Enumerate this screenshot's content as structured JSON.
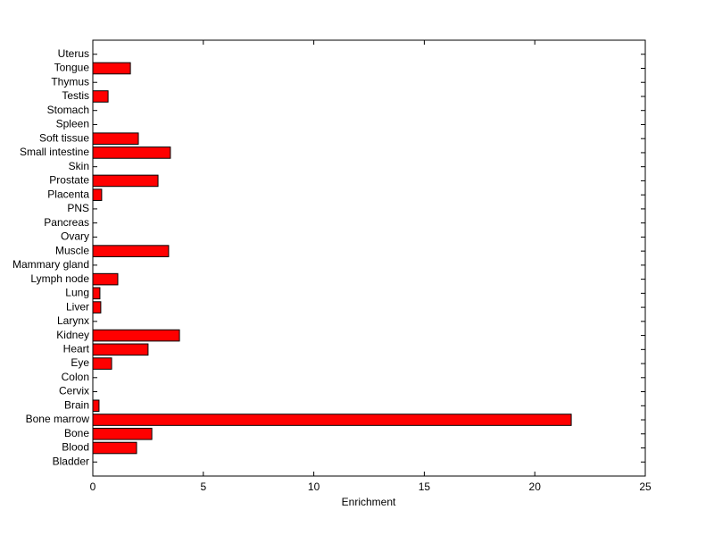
{
  "chart_data": {
    "type": "barh",
    "xlabel": "Enrichment",
    "categories": [
      "Bladder",
      "Blood",
      "Bone",
      "Bone marrow",
      "Brain",
      "Cervix",
      "Colon",
      "Eye",
      "Heart",
      "Kidney",
      "Larynx",
      "Liver",
      "Lung",
      "Lymph node",
      "Mammary gland",
      "Muscle",
      "Ovary",
      "Pancreas",
      "PNS",
      "Placenta",
      "Prostate",
      "Skin",
      "Small intestine",
      "Soft tissue",
      "Spleen",
      "Stomach",
      "Testis",
      "Thymus",
      "Tongue",
      "Uterus"
    ],
    "values": [
      0,
      1.98,
      2.67,
      21.65,
      0.28,
      0,
      0,
      0.85,
      2.5,
      3.92,
      0,
      0.36,
      0.32,
      1.13,
      0,
      3.43,
      0,
      0,
      0,
      0.4,
      2.95,
      0,
      3.51,
      2.06,
      0,
      0,
      0.69,
      0,
      1.7,
      0
    ],
    "color": "#ff0000",
    "xlim": [
      0,
      25
    ],
    "xticks": [
      0,
      5,
      10,
      15,
      20,
      25
    ]
  }
}
